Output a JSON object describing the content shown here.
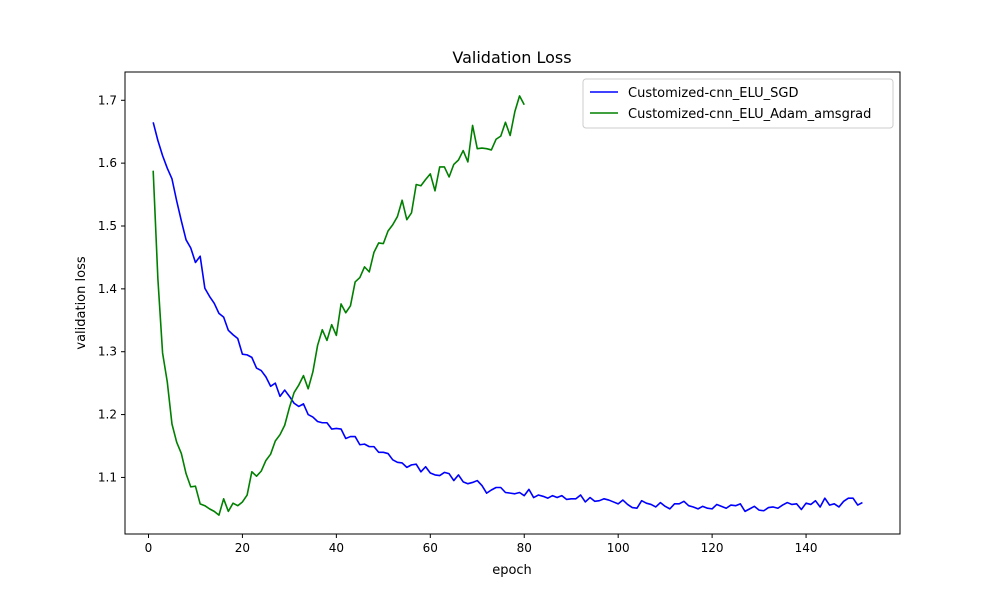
{
  "chart_data": {
    "type": "line",
    "title": "Validation Loss",
    "xlabel": "epoch",
    "ylabel": "validation loss",
    "xlim": [
      -5,
      160
    ],
    "ylim": [
      1.01,
      1.745
    ],
    "xticks": [
      0,
      20,
      40,
      60,
      80,
      100,
      120,
      140
    ],
    "yticks": [
      1.1,
      1.2,
      1.3,
      1.4,
      1.5,
      1.6,
      1.7
    ],
    "grid": false,
    "legend_position": "top-right",
    "series": [
      {
        "name": "Customized-cnn_ELU_SGD",
        "color": "#0000ff",
        "x_start": 1,
        "values": [
          1.665,
          1.636,
          1.612,
          1.592,
          1.575,
          1.54,
          1.508,
          1.478,
          1.465,
          1.442,
          1.452,
          1.401,
          1.388,
          1.377,
          1.361,
          1.355,
          1.334,
          1.327,
          1.321,
          1.296,
          1.295,
          1.291,
          1.274,
          1.27,
          1.26,
          1.245,
          1.25,
          1.229,
          1.239,
          1.229,
          1.218,
          1.213,
          1.217,
          1.2,
          1.196,
          1.189,
          1.187,
          1.187,
          1.177,
          1.178,
          1.177,
          1.162,
          1.165,
          1.165,
          1.152,
          1.153,
          1.149,
          1.149,
          1.14,
          1.14,
          1.138,
          1.128,
          1.124,
          1.123,
          1.116,
          1.12,
          1.121,
          1.109,
          1.117,
          1.107,
          1.104,
          1.103,
          1.108,
          1.106,
          1.095,
          1.104,
          1.093,
          1.09,
          1.092,
          1.095,
          1.087,
          1.075,
          1.08,
          1.084,
          1.084,
          1.076,
          1.075,
          1.074,
          1.076,
          1.071,
          1.081,
          1.068,
          1.072,
          1.07,
          1.067,
          1.071,
          1.068,
          1.071,
          1.065,
          1.066,
          1.066,
          1.072,
          1.061,
          1.068,
          1.062,
          1.063,
          1.066,
          1.064,
          1.061,
          1.058,
          1.064,
          1.057,
          1.052,
          1.051,
          1.063,
          1.059,
          1.057,
          1.053,
          1.06,
          1.054,
          1.05,
          1.058,
          1.058,
          1.062,
          1.055,
          1.053,
          1.05,
          1.054,
          1.051,
          1.05,
          1.057,
          1.054,
          1.051,
          1.056,
          1.055,
          1.058,
          1.046,
          1.05,
          1.054,
          1.048,
          1.047,
          1.052,
          1.053,
          1.051,
          1.056,
          1.06,
          1.057,
          1.058,
          1.049,
          1.059,
          1.057,
          1.063,
          1.053,
          1.067,
          1.056,
          1.058,
          1.053,
          1.062,
          1.067,
          1.067,
          1.056,
          1.06
        ]
      },
      {
        "name": "Customized-cnn_ELU_Adam_amsgrad",
        "color": "#008000",
        "x_start": 1,
        "values": [
          1.588,
          1.416,
          1.298,
          1.252,
          1.185,
          1.156,
          1.138,
          1.106,
          1.085,
          1.086,
          1.058,
          1.055,
          1.05,
          1.046,
          1.04,
          1.066,
          1.046,
          1.059,
          1.055,
          1.061,
          1.072,
          1.109,
          1.102,
          1.11,
          1.127,
          1.137,
          1.158,
          1.168,
          1.183,
          1.211,
          1.235,
          1.247,
          1.262,
          1.241,
          1.268,
          1.31,
          1.335,
          1.318,
          1.343,
          1.326,
          1.376,
          1.362,
          1.373,
          1.411,
          1.418,
          1.435,
          1.427,
          1.458,
          1.473,
          1.472,
          1.492,
          1.502,
          1.515,
          1.541,
          1.51,
          1.521,
          1.566,
          1.564,
          1.574,
          1.583,
          1.556,
          1.594,
          1.594,
          1.578,
          1.598,
          1.605,
          1.62,
          1.602,
          1.66,
          1.623,
          1.624,
          1.623,
          1.621,
          1.638,
          1.643,
          1.665,
          1.644,
          1.682,
          1.707,
          1.693
        ]
      }
    ]
  }
}
